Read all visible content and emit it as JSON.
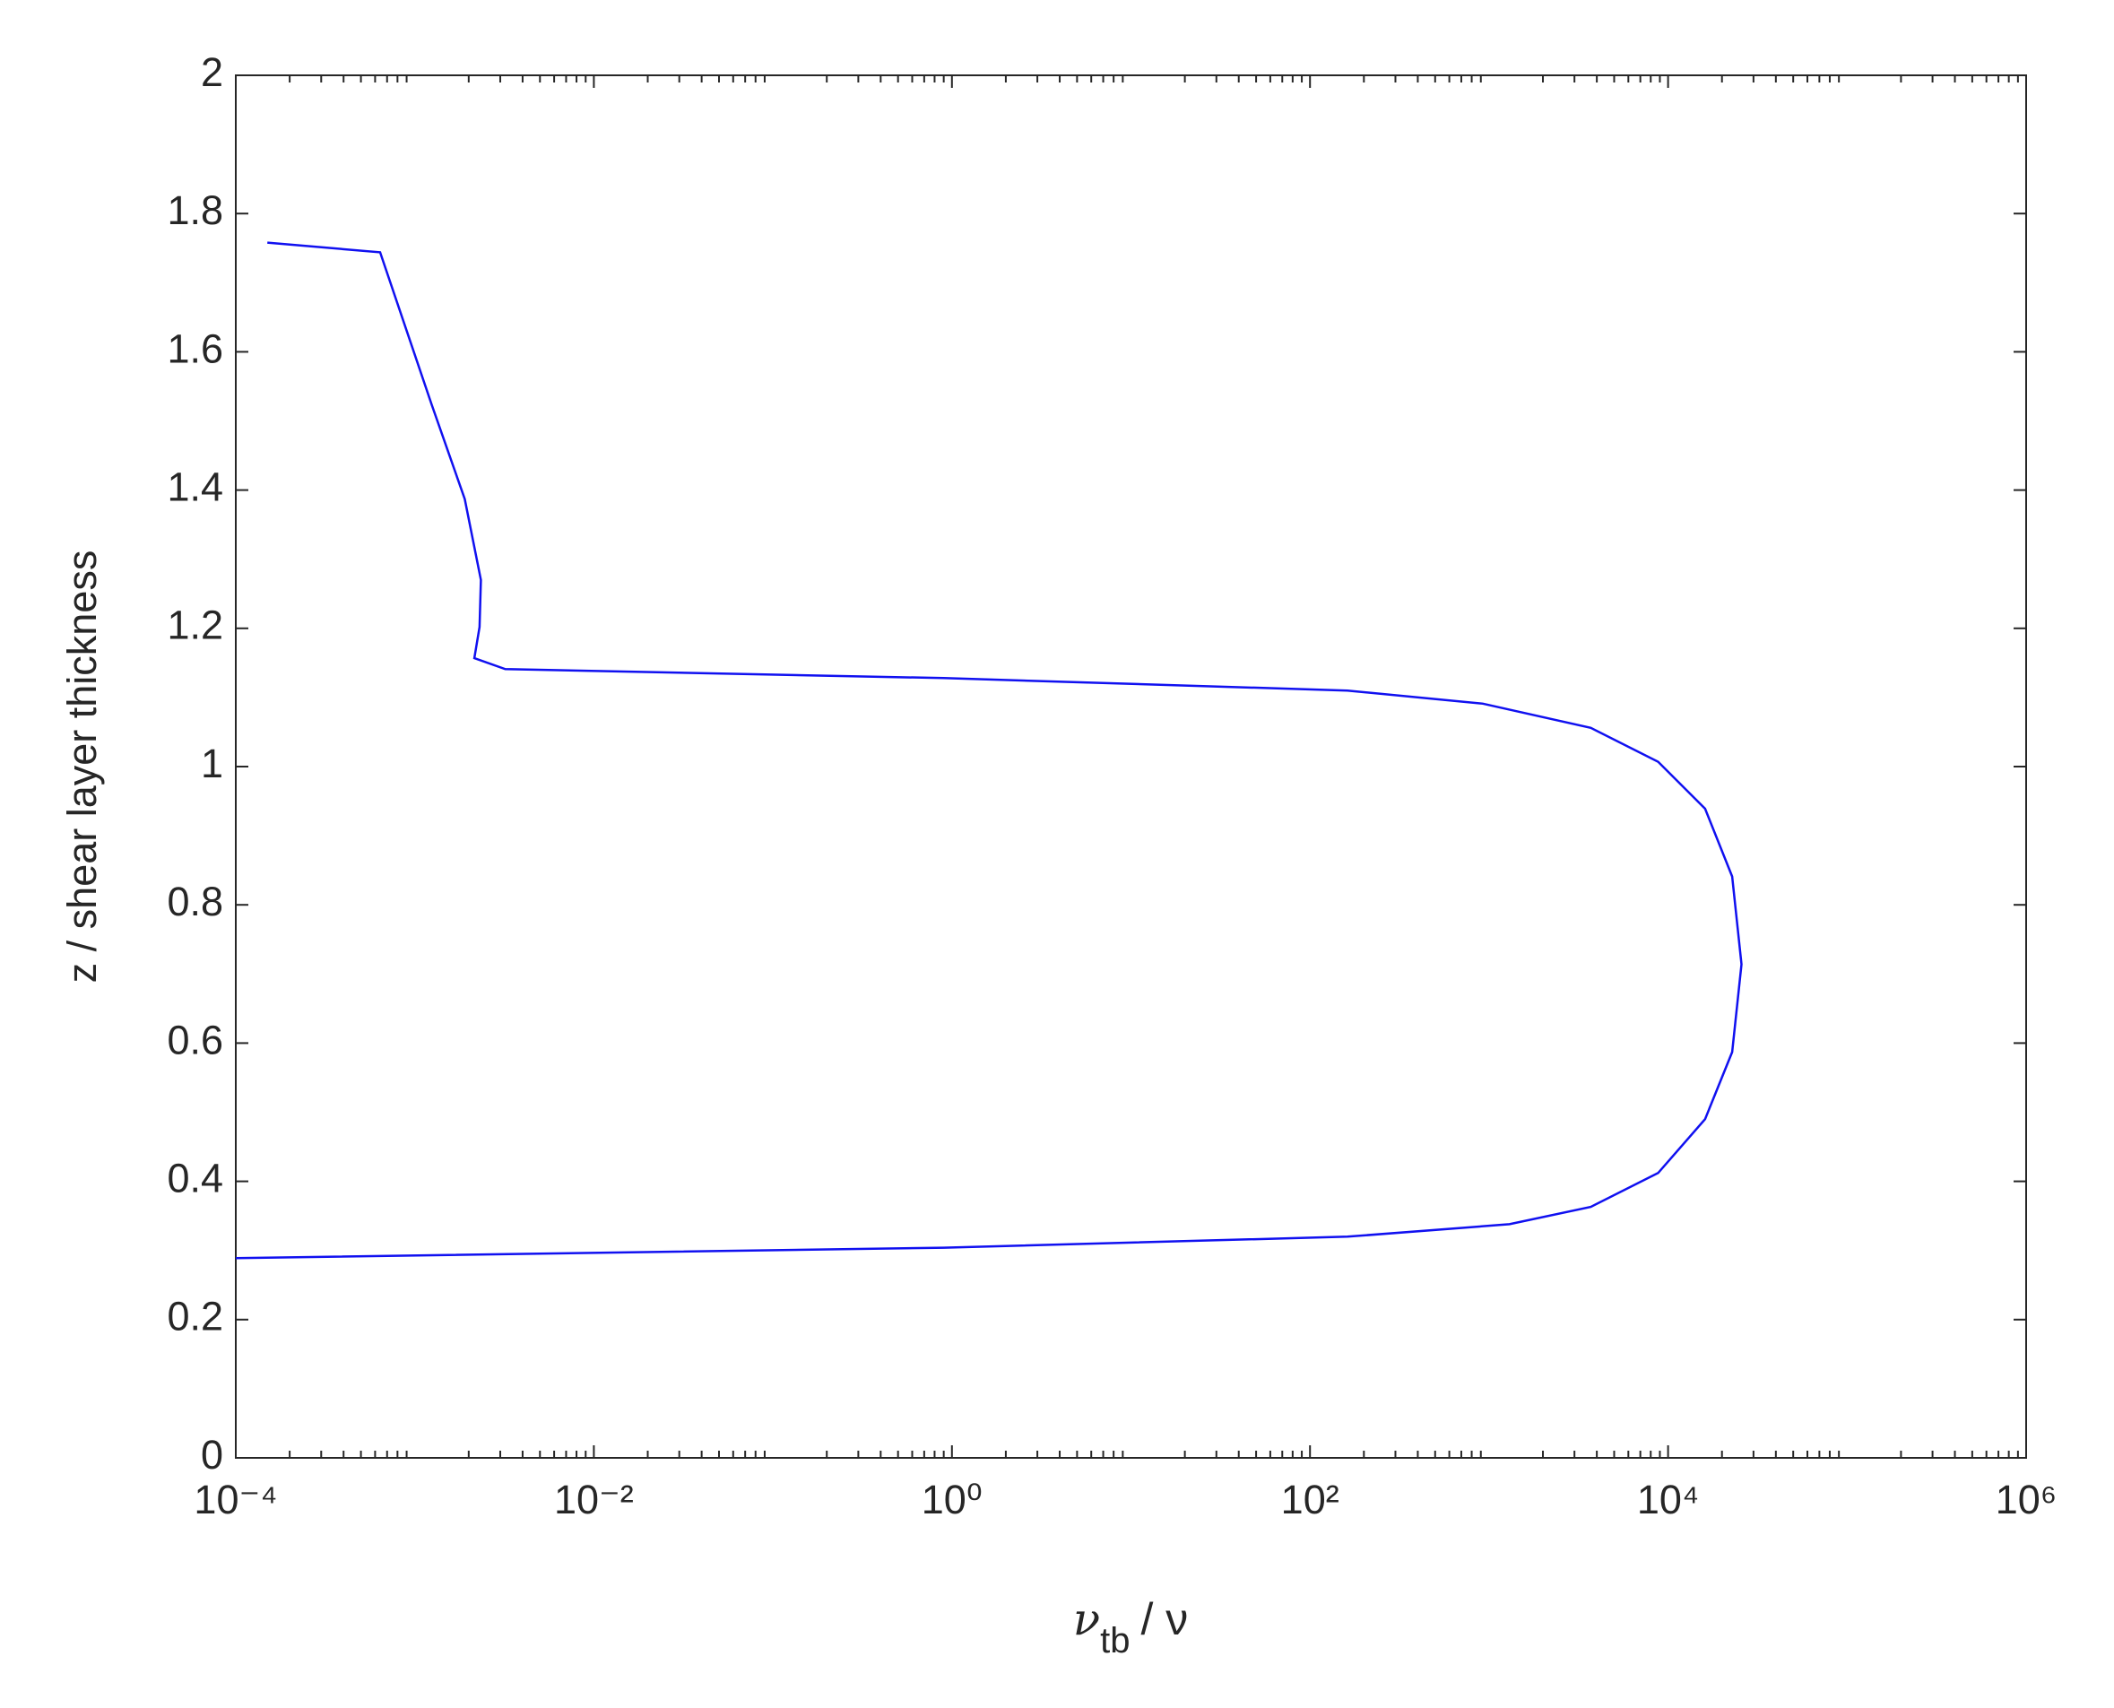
{
  "chart_data": {
    "type": "line",
    "x_label_parts": [
      "ν",
      "tb",
      "/ ν"
    ],
    "y_label": "z / shear layer thickness",
    "log_x": true,
    "xlim": [
      0.0001,
      1000000
    ],
    "xticks": [
      {
        "value": 0.0001,
        "label": "10⁻⁴"
      },
      {
        "value": 0.01,
        "label": "10⁻²"
      },
      {
        "value": 1,
        "label": "10⁰"
      },
      {
        "value": 100,
        "label": "10²"
      },
      {
        "value": 10000,
        "label": "10⁴"
      },
      {
        "value": 1000000,
        "label": "10⁶"
      }
    ],
    "ylim": [
      0,
      2
    ],
    "yticks": [
      0,
      0.2,
      0.4,
      0.6,
      0.8,
      1,
      1.2,
      1.4,
      1.6,
      1.8,
      2
    ],
    "series": [
      {
        "color": "#1010f0",
        "x": [
          0.00015,
          0.00064,
          0.00124,
          0.0019,
          0.00234,
          0.0023,
          0.00215,
          0.0032,
          0.9,
          162,
          923,
          3700,
          8800,
          16100,
          22800,
          25700,
          22800,
          16100,
          8800,
          3700,
          1300,
          162,
          0.9,
          0.0001
        ],
        "values": [
          1.758,
          1.744,
          1.524,
          1.387,
          1.27,
          1.202,
          1.157,
          1.141,
          1.128,
          1.11,
          1.091,
          1.056,
          1.007,
          0.939,
          0.841,
          0.714,
          0.587,
          0.49,
          0.412,
          0.363,
          0.338,
          0.32,
          0.304,
          0.289
        ]
      }
    ]
  }
}
